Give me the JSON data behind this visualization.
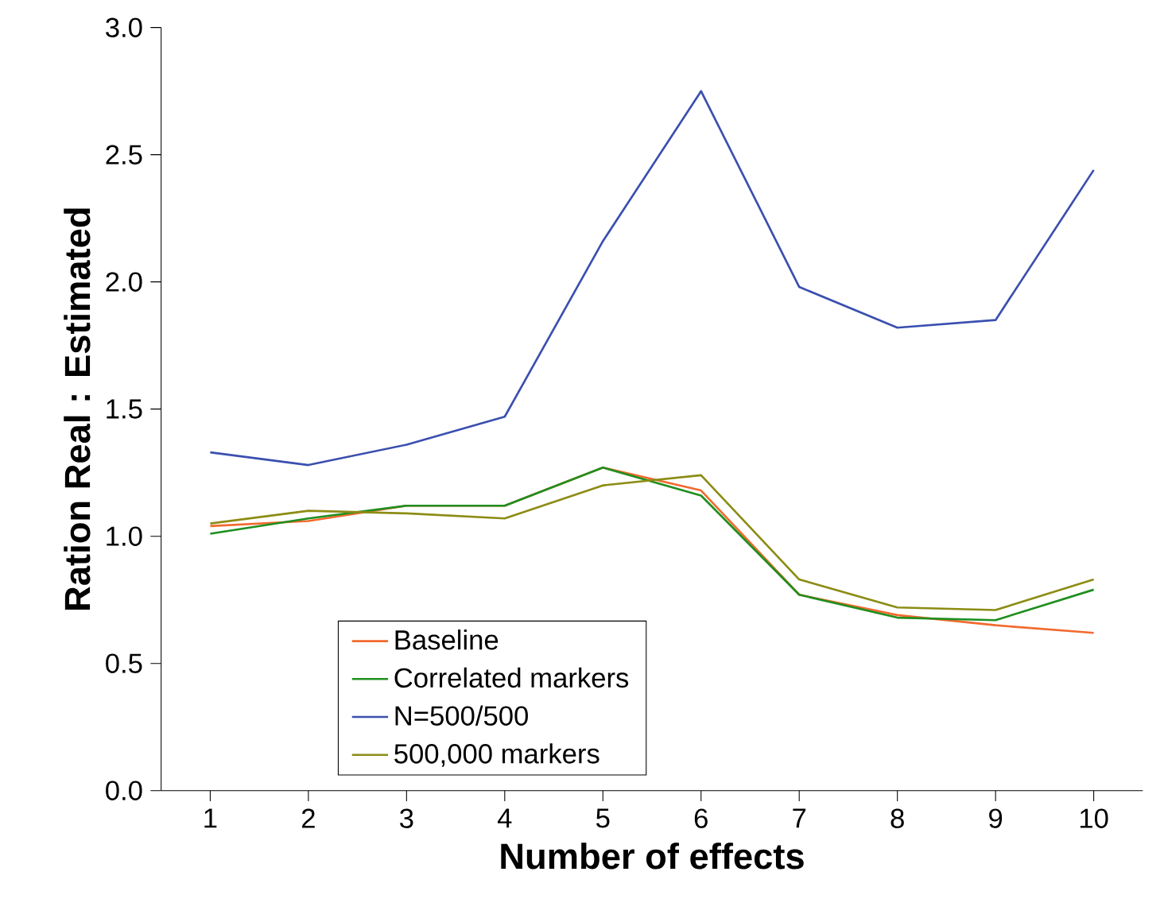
{
  "chart_data": {
    "type": "line",
    "xlabel": "Number of effects",
    "ylabel": "Ration Real : Estimated",
    "x": [
      1,
      2,
      3,
      4,
      5,
      6,
      7,
      8,
      9,
      10
    ],
    "series": [
      {
        "name": "Baseline",
        "color": "#f26a2e",
        "values": [
          1.04,
          1.06,
          1.12,
          1.12,
          1.27,
          1.18,
          0.77,
          0.69,
          0.65,
          0.62
        ]
      },
      {
        "name": "Correlated markers",
        "color": "#1f8f1f",
        "values": [
          1.01,
          1.07,
          1.12,
          1.12,
          1.27,
          1.16,
          0.77,
          0.68,
          0.67,
          0.79
        ]
      },
      {
        "name": "N=500/500",
        "color": "#3a4faf",
        "values": [
          1.33,
          1.28,
          1.36,
          1.47,
          2.16,
          2.75,
          1.98,
          1.82,
          1.85,
          2.44
        ]
      },
      {
        "name": "500,000 markers",
        "color": "#8c8c14",
        "values": [
          1.05,
          1.1,
          1.09,
          1.07,
          1.2,
          1.24,
          0.83,
          0.72,
          0.71,
          0.83
        ]
      }
    ],
    "xlim": [
      0.5,
      10.5
    ],
    "ylim": [
      0,
      3
    ],
    "xticks": [
      1,
      2,
      3,
      4,
      5,
      6,
      7,
      8,
      9,
      10
    ],
    "yticks": [
      {
        "value": 0,
        "label": "0.0"
      },
      0.5,
      {
        "value": 1,
        "label": "1.0"
      },
      1.5,
      {
        "value": 2,
        "label": "2.0"
      },
      2.5,
      {
        "value": 3,
        "label": "3.0"
      }
    ],
    "legend": "bottom left",
    "grid": false,
    "marker": "none",
    "line_style": "solid"
  }
}
